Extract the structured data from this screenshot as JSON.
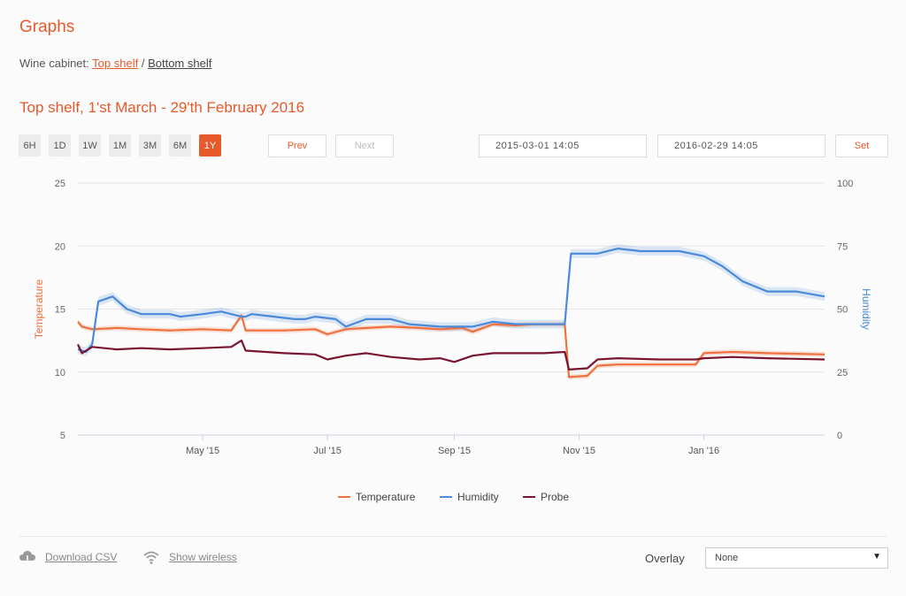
{
  "page": {
    "title": "Graphs",
    "breadcrumb_prefix": "Wine cabinet:",
    "breadcrumb_links": [
      "Top shelf",
      "Bottom shelf"
    ],
    "breadcrumb_separator": "/",
    "subtitle": "Top shelf, 1'st March - 29'th February 2016"
  },
  "range_buttons": [
    "6H",
    "1D",
    "1W",
    "1M",
    "3M",
    "6M",
    "1Y"
  ],
  "range_selected": "1Y",
  "nav": {
    "prev": "Prev",
    "next": "Next"
  },
  "dates": {
    "from": "2015-03-01 14:05",
    "to": "2016-02-29 14:05",
    "set": "Set"
  },
  "footer": {
    "download": "Download CSV",
    "wireless": "Show wireless",
    "overlay_label": "Overlay",
    "overlay_value": "None"
  },
  "colors": {
    "accent": "#e8592b",
    "temperature": "#f0703e",
    "humidity": "#4a8ad8",
    "probe": "#7a1530"
  },
  "chart_data": {
    "type": "line",
    "x_ticks": [
      "May '15",
      "Jul '15",
      "Sep '15",
      "Nov '15",
      "Jan '16"
    ],
    "x_range": [
      "2015-03-01",
      "2016-02-29"
    ],
    "ylabel_left": "Temperature",
    "ylabel_right": "Humidity",
    "ylim_left": [
      5,
      25
    ],
    "yticks_left": [
      5,
      10,
      15,
      20,
      25
    ],
    "ylim_right": [
      0,
      100
    ],
    "yticks_right": [
      0,
      25,
      50,
      75,
      100
    ],
    "grid": true,
    "legend_position": "bottom",
    "series": [
      {
        "name": "Temperature",
        "axis": "left",
        "points": [
          [
            "2015-03-01",
            14.0
          ],
          [
            "2015-03-03",
            13.6
          ],
          [
            "2015-03-08",
            13.4
          ],
          [
            "2015-03-20",
            13.5
          ],
          [
            "2015-04-01",
            13.4
          ],
          [
            "2015-04-15",
            13.3
          ],
          [
            "2015-05-01",
            13.4
          ],
          [
            "2015-05-15",
            13.3
          ],
          [
            "2015-05-20",
            14.5
          ],
          [
            "2015-05-22",
            13.3
          ],
          [
            "2015-06-10",
            13.3
          ],
          [
            "2015-06-25",
            13.4
          ],
          [
            "2015-07-01",
            13.0
          ],
          [
            "2015-07-10",
            13.4
          ],
          [
            "2015-07-20",
            13.5
          ],
          [
            "2015-08-01",
            13.6
          ],
          [
            "2015-08-15",
            13.5
          ],
          [
            "2015-08-25",
            13.4
          ],
          [
            "2015-09-05",
            13.5
          ],
          [
            "2015-09-10",
            13.2
          ],
          [
            "2015-09-20",
            13.8
          ],
          [
            "2015-10-01",
            13.7
          ],
          [
            "2015-10-10",
            13.8
          ],
          [
            "2015-10-25",
            13.8
          ],
          [
            "2015-10-27",
            9.6
          ],
          [
            "2015-11-05",
            9.7
          ],
          [
            "2015-11-10",
            10.5
          ],
          [
            "2015-11-20",
            10.6
          ],
          [
            "2015-12-10",
            10.6
          ],
          [
            "2015-12-28",
            10.6
          ],
          [
            "2016-01-01",
            11.5
          ],
          [
            "2016-01-15",
            11.6
          ],
          [
            "2016-02-01",
            11.5
          ],
          [
            "2016-02-29",
            11.4
          ]
        ]
      },
      {
        "name": "Humidity",
        "axis": "right",
        "points": [
          [
            "2015-03-01",
            34
          ],
          [
            "2015-03-05",
            33
          ],
          [
            "2015-03-08",
            36
          ],
          [
            "2015-03-11",
            53
          ],
          [
            "2015-03-18",
            55
          ],
          [
            "2015-03-25",
            50
          ],
          [
            "2015-04-01",
            48
          ],
          [
            "2015-04-15",
            48
          ],
          [
            "2015-04-20",
            47
          ],
          [
            "2015-05-01",
            48
          ],
          [
            "2015-05-10",
            49
          ],
          [
            "2015-05-20",
            47
          ],
          [
            "2015-05-22",
            47
          ],
          [
            "2015-05-25",
            48
          ],
          [
            "2015-06-05",
            47
          ],
          [
            "2015-06-15",
            46
          ],
          [
            "2015-06-20",
            46
          ],
          [
            "2015-06-25",
            47
          ],
          [
            "2015-07-05",
            46
          ],
          [
            "2015-07-10",
            43
          ],
          [
            "2015-07-20",
            46
          ],
          [
            "2015-08-01",
            46
          ],
          [
            "2015-08-10",
            44
          ],
          [
            "2015-08-25",
            43
          ],
          [
            "2015-09-10",
            43
          ],
          [
            "2015-09-20",
            45
          ],
          [
            "2015-10-01",
            44
          ],
          [
            "2015-10-10",
            44
          ],
          [
            "2015-10-25",
            44
          ],
          [
            "2015-10-28",
            72
          ],
          [
            "2015-11-10",
            72
          ],
          [
            "2015-11-20",
            74
          ],
          [
            "2015-12-01",
            73
          ],
          [
            "2015-12-20",
            73
          ],
          [
            "2016-01-01",
            71
          ],
          [
            "2016-01-10",
            67
          ],
          [
            "2016-01-20",
            61
          ],
          [
            "2016-02-01",
            57
          ],
          [
            "2016-02-15",
            57
          ],
          [
            "2016-02-29",
            55
          ]
        ]
      },
      {
        "name": "Probe",
        "axis": "left",
        "points": [
          [
            "2015-03-01",
            12.2
          ],
          [
            "2015-03-03",
            11.5
          ],
          [
            "2015-03-08",
            12.0
          ],
          [
            "2015-03-20",
            11.8
          ],
          [
            "2015-04-01",
            11.9
          ],
          [
            "2015-04-15",
            11.8
          ],
          [
            "2015-05-01",
            11.9
          ],
          [
            "2015-05-15",
            12.0
          ],
          [
            "2015-05-20",
            12.5
          ],
          [
            "2015-05-22",
            11.7
          ],
          [
            "2015-06-10",
            11.5
          ],
          [
            "2015-06-25",
            11.4
          ],
          [
            "2015-07-01",
            11.0
          ],
          [
            "2015-07-10",
            11.3
          ],
          [
            "2015-07-20",
            11.5
          ],
          [
            "2015-08-01",
            11.2
          ],
          [
            "2015-08-15",
            11.0
          ],
          [
            "2015-08-25",
            11.1
          ],
          [
            "2015-09-01",
            10.8
          ],
          [
            "2015-09-10",
            11.3
          ],
          [
            "2015-09-20",
            11.5
          ],
          [
            "2015-10-01",
            11.5
          ],
          [
            "2015-10-15",
            11.5
          ],
          [
            "2015-10-25",
            11.6
          ],
          [
            "2015-10-27",
            10.2
          ],
          [
            "2015-11-05",
            10.3
          ],
          [
            "2015-11-10",
            11.0
          ],
          [
            "2015-11-20",
            11.1
          ],
          [
            "2015-12-10",
            11.0
          ],
          [
            "2015-12-28",
            11.0
          ],
          [
            "2016-01-01",
            11.1
          ],
          [
            "2016-01-15",
            11.2
          ],
          [
            "2016-02-01",
            11.1
          ],
          [
            "2016-02-29",
            11.0
          ]
        ]
      }
    ]
  }
}
